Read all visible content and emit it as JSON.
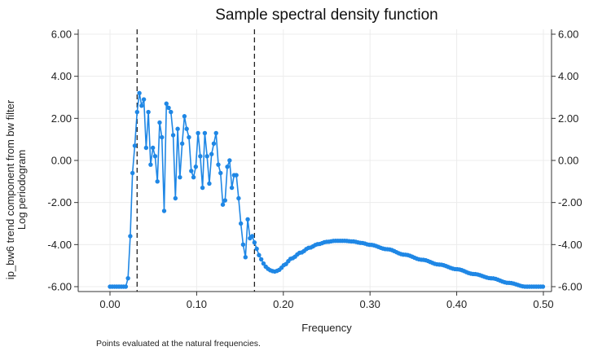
{
  "chart_data": {
    "type": "line",
    "title": "Sample spectral density function",
    "xlabel": "Frequency",
    "ylabel_lines": [
      "ip_bw6 trend component from bw filter",
      "Log periodogram"
    ],
    "note": "Points evaluated at the natural frequencies.",
    "xlim": [
      0.0,
      0.5
    ],
    "ylim": [
      -6.0,
      6.0
    ],
    "xticks": [
      0.0,
      0.1,
      0.2,
      0.3,
      0.4,
      0.5
    ],
    "xtick_labels": [
      "0.00",
      "0.10",
      "0.20",
      "0.30",
      "0.40",
      "0.50"
    ],
    "yticks": [
      -6,
      -4,
      -2,
      0,
      2,
      4,
      6
    ],
    "ytick_labels": [
      "-6.00",
      "-4.00",
      "-2.00",
      "0.00",
      "2.00",
      "4.00",
      "6.00"
    ],
    "grid": true,
    "line_color": "#1f87e5",
    "reference_lines": [
      0.0313,
      0.1667
    ],
    "series_segment_rough": {
      "x": [
        0.0,
        0.0026,
        0.0052,
        0.0078,
        0.0104,
        0.013,
        0.0156,
        0.0182,
        0.0208,
        0.0234,
        0.026,
        0.0286,
        0.0313,
        0.0339,
        0.0365,
        0.0391,
        0.0417,
        0.0443,
        0.0469,
        0.0495,
        0.0521,
        0.0547,
        0.0573,
        0.0599,
        0.0625,
        0.0651,
        0.0677,
        0.0703,
        0.0729,
        0.0755,
        0.0781,
        0.0807,
        0.0833,
        0.0859,
        0.0885,
        0.0911,
        0.0938,
        0.0964,
        0.099,
        0.1016,
        0.1042,
        0.1068,
        0.1094,
        0.112,
        0.1146,
        0.1172,
        0.1198,
        0.1224,
        0.125,
        0.1276,
        0.1302,
        0.1328,
        0.1354,
        0.138,
        0.1406,
        0.1432,
        0.1458,
        0.1484,
        0.151,
        0.1536,
        0.1563,
        0.1589,
        0.1615,
        0.1641,
        0.1667,
        0.1693,
        0.1719,
        0.1745,
        0.1771,
        0.1797,
        0.1823,
        0.1849,
        0.1875,
        0.1901,
        0.1927,
        0.1953,
        0.1979,
        0.2005
      ],
      "y": [
        -6.0,
        -6.0,
        -6.0,
        -6.0,
        -6.0,
        -6.0,
        -6.0,
        -6.0,
        -5.6,
        -3.6,
        -0.6,
        0.7,
        2.3,
        3.2,
        2.6,
        2.9,
        0.6,
        2.3,
        -0.2,
        0.6,
        0.2,
        -1.0,
        1.8,
        1.1,
        -2.4,
        2.7,
        2.5,
        2.3,
        1.2,
        -1.8,
        1.5,
        -0.8,
        0.8,
        2.1,
        1.5,
        1.1,
        -0.5,
        -0.8,
        -0.3,
        1.3,
        0.2,
        -1.3,
        1.3,
        0.2,
        -1.1,
        0.3,
        0.8,
        1.3,
        -0.2,
        -0.6,
        -2.1,
        -1.9,
        -0.3,
        0.0,
        -1.3,
        -0.7,
        -0.7,
        -1.8,
        -3.0,
        -4.0,
        -4.6,
        -2.8,
        -3.7,
        -3.6,
        -3.9,
        -4.2,
        -4.5,
        -4.7,
        -4.9,
        -5.05,
        -5.15,
        -5.22,
        -5.26,
        -5.28,
        -5.25,
        -5.2,
        -5.1,
        -4.98
      ]
    },
    "series_segment_smooth": {
      "x_start": 0.2005,
      "x_end": 0.5,
      "step": 0.0026,
      "anchors_x": [
        0.2005,
        0.21,
        0.22,
        0.23,
        0.24,
        0.25,
        0.26,
        0.27,
        0.28,
        0.29,
        0.3,
        0.32,
        0.34,
        0.36,
        0.38,
        0.4,
        0.42,
        0.44,
        0.46,
        0.48,
        0.5
      ],
      "anchors_y": [
        -4.98,
        -4.65,
        -4.38,
        -4.15,
        -3.98,
        -3.87,
        -3.82,
        -3.82,
        -3.85,
        -3.92,
        -4.01,
        -4.22,
        -4.48,
        -4.72,
        -4.95,
        -5.17,
        -5.4,
        -5.6,
        -5.82,
        -6.0,
        -6.0
      ]
    }
  }
}
